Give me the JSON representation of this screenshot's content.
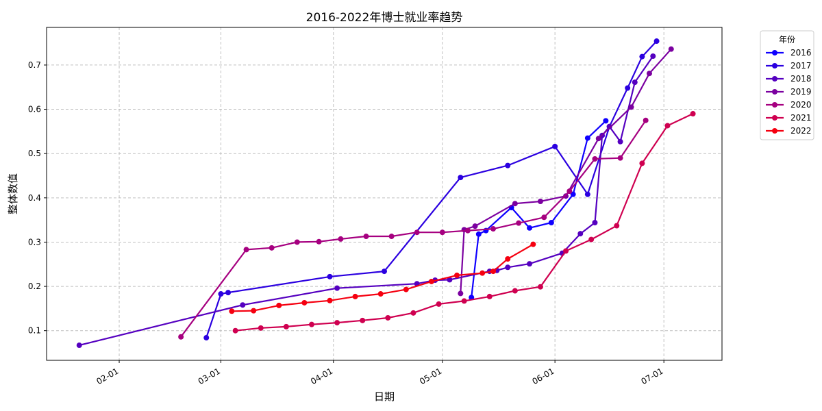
{
  "chart_data": {
    "type": "line",
    "title": "2016-2022年博士就业率趋势",
    "xlabel": "日期",
    "ylabel": "整体数值",
    "legend_title": "年份",
    "legend_position": "outside-top-right",
    "grid": true,
    "x_tick_labels": [
      "02-01",
      "03-01",
      "04-01",
      "05-01",
      "06-01",
      "07-01"
    ],
    "x_ticks": [
      "02-01",
      "03-01",
      "04-01",
      "05-01",
      "06-01",
      "07-01"
    ],
    "xlim": [
      "01-12",
      "07-17"
    ],
    "y_ticks": [
      0.1,
      0.2,
      0.3,
      0.4,
      0.5,
      0.6,
      0.7
    ],
    "ylim": [
      0.033,
      0.785
    ],
    "series": [
      {
        "name": "2016",
        "color": "#0f00ff",
        "points": [
          [
            "05-09",
            0.175
          ],
          [
            "05-11",
            0.318
          ],
          [
            "05-13",
            0.326
          ],
          [
            "05-20",
            0.378
          ],
          [
            "05-25",
            0.332
          ],
          [
            "05-31",
            0.344
          ],
          [
            "06-06",
            0.408
          ],
          [
            "06-10",
            0.535
          ],
          [
            "06-15",
            0.574
          ]
        ]
      },
      {
        "name": "2017",
        "color": "#2b00e0",
        "points": [
          [
            "02-25",
            0.084
          ],
          [
            "03-01",
            0.183
          ],
          [
            "03-03",
            0.186
          ],
          [
            "03-31",
            0.222
          ],
          [
            "04-15",
            0.234
          ],
          [
            "05-06",
            0.446
          ],
          [
            "05-19",
            0.473
          ],
          [
            "06-01",
            0.516
          ],
          [
            "06-10",
            0.408
          ],
          [
            "06-16",
            0.561
          ],
          [
            "06-21",
            0.648
          ],
          [
            "06-25",
            0.719
          ],
          [
            "06-29",
            0.754
          ]
        ]
      },
      {
        "name": "2018",
        "color": "#5500c0",
        "points": [
          [
            "01-21",
            0.067
          ],
          [
            "03-07",
            0.158
          ],
          [
            "04-02",
            0.196
          ],
          [
            "04-24",
            0.206
          ],
          [
            "04-29",
            0.214
          ],
          [
            "05-03",
            0.215
          ],
          [
            "05-14",
            0.234
          ],
          [
            "05-16",
            0.236
          ],
          [
            "05-19",
            0.243
          ],
          [
            "05-25",
            0.251
          ],
          [
            "06-03",
            0.275
          ],
          [
            "06-08",
            0.319
          ],
          [
            "06-12",
            0.344
          ],
          [
            "06-14",
            0.541
          ],
          [
            "06-16",
            0.561
          ],
          [
            "06-19",
            0.527
          ],
          [
            "06-23",
            0.661
          ],
          [
            "06-28",
            0.72
          ]
        ]
      },
      {
        "name": "2019",
        "color": "#7b00a0",
        "points": [
          [
            "05-06",
            0.184
          ],
          [
            "05-07",
            0.328
          ],
          [
            "05-10",
            0.336
          ],
          [
            "05-21",
            0.387
          ],
          [
            "05-28",
            0.392
          ],
          [
            "06-04",
            0.404
          ],
          [
            "06-13",
            0.534
          ],
          [
            "06-22",
            0.605
          ],
          [
            "06-27",
            0.681
          ],
          [
            "07-03",
            0.736
          ]
        ]
      },
      {
        "name": "2020",
        "color": "#a60080",
        "points": [
          [
            "02-18",
            0.086
          ],
          [
            "03-08",
            0.283
          ],
          [
            "03-15",
            0.287
          ],
          [
            "03-22",
            0.3
          ],
          [
            "03-28",
            0.301
          ],
          [
            "04-03",
            0.307
          ],
          [
            "04-10",
            0.313
          ],
          [
            "04-17",
            0.313
          ],
          [
            "04-24",
            0.322
          ],
          [
            "05-01",
            0.322
          ],
          [
            "05-08",
            0.326
          ],
          [
            "05-15",
            0.33
          ],
          [
            "05-22",
            0.343
          ],
          [
            "05-29",
            0.356
          ],
          [
            "06-05",
            0.415
          ],
          [
            "06-12",
            0.488
          ],
          [
            "06-19",
            0.49
          ],
          [
            "06-26",
            0.575
          ]
        ]
      },
      {
        "name": "2021",
        "color": "#cf0050",
        "points": [
          [
            "03-05",
            0.1
          ],
          [
            "03-12",
            0.106
          ],
          [
            "03-19",
            0.109
          ],
          [
            "03-26",
            0.114
          ],
          [
            "04-02",
            0.118
          ],
          [
            "04-09",
            0.123
          ],
          [
            "04-16",
            0.129
          ],
          [
            "04-23",
            0.14
          ],
          [
            "04-30",
            0.16
          ],
          [
            "05-07",
            0.167
          ],
          [
            "05-14",
            0.177
          ],
          [
            "05-21",
            0.19
          ],
          [
            "05-28",
            0.199
          ],
          [
            "06-04",
            0.28
          ],
          [
            "06-11",
            0.306
          ],
          [
            "06-18",
            0.337
          ],
          [
            "06-25",
            0.478
          ],
          [
            "07-02",
            0.563
          ],
          [
            "07-09",
            0.59
          ]
        ]
      },
      {
        "name": "2022",
        "color": "#f50010",
        "points": [
          [
            "03-04",
            0.144
          ],
          [
            "03-10",
            0.145
          ],
          [
            "03-17",
            0.157
          ],
          [
            "03-24",
            0.163
          ],
          [
            "03-31",
            0.168
          ],
          [
            "04-07",
            0.177
          ],
          [
            "04-14",
            0.183
          ],
          [
            "04-21",
            0.193
          ],
          [
            "04-28",
            0.211
          ],
          [
            "05-05",
            0.225
          ],
          [
            "05-12",
            0.23
          ],
          [
            "05-15",
            0.234
          ],
          [
            "05-19",
            0.262
          ],
          [
            "05-26",
            0.295
          ]
        ]
      }
    ]
  }
}
